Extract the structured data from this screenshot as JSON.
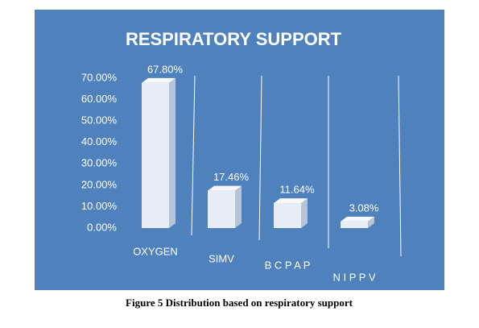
{
  "chart_data": {
    "type": "bar",
    "title": "RESPIRATORY SUPPORT",
    "categories": [
      "OXYGEN",
      "SIMV",
      "B C P A P",
      "N I P P V"
    ],
    "values": [
      67.8,
      17.46,
      11.64,
      3.08
    ],
    "value_labels": [
      "67.80%",
      "17.46%",
      "11.64%",
      "3.08%"
    ],
    "color": "#e8ecf4",
    "ylim": [
      0,
      70
    ],
    "yticks": [
      {
        "value": 0,
        "label": "0.00%"
      },
      {
        "value": 10,
        "label": "10.00%"
      },
      {
        "value": 20,
        "label": "20.00%"
      },
      {
        "value": 30,
        "label": "30.00%"
      },
      {
        "value": 40,
        "label": "40.00%"
      },
      {
        "value": 50,
        "label": "50.00%"
      },
      {
        "value": 60,
        "label": "60.00%"
      },
      {
        "value": 70,
        "label": "70.00%"
      }
    ],
    "caption": "Figure 5 Distribution based on respiratory support"
  }
}
